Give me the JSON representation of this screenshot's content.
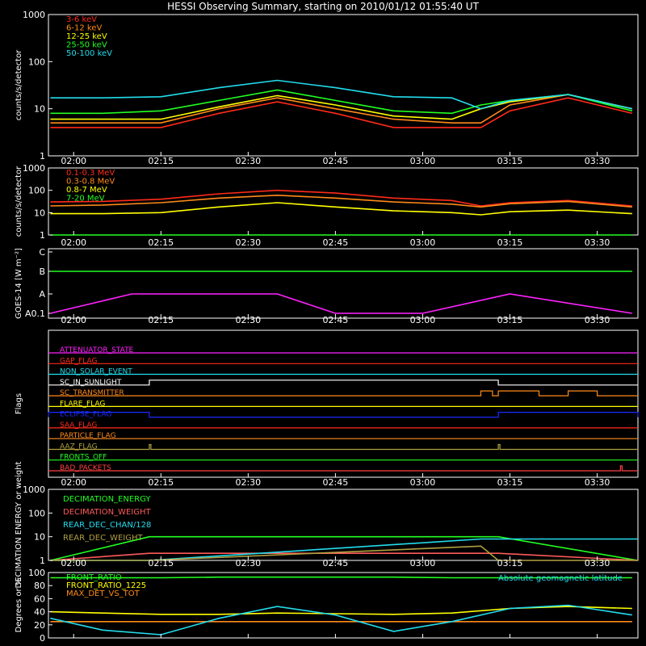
{
  "title": "HESSI Observing Summary, starting on 2010/01/12 01:55:40 UT",
  "colors": {
    "background": "#000000",
    "axes": "#ffffff",
    "red": "#ff2a1a",
    "orange": "#ff8a1a",
    "yellow": "#ffff00",
    "green": "#22ff22",
    "cyan": "#22ddee",
    "magenta": "#ff22ff",
    "blue": "#1a2aff",
    "olive": "#b0a040",
    "rose": "#ff4040",
    "pink": "#ff5a5a"
  },
  "chart_data": [
    {
      "type": "line",
      "ylabel": "counts/s/detector",
      "y_scale": "log",
      "ylim": [
        1,
        1000
      ],
      "yticks": [
        "1",
        "10",
        "100",
        "1000"
      ],
      "xlim": [
        "01:55:40",
        "03:37"
      ],
      "xticks": [
        "02:00",
        "02:15",
        "02:30",
        "02:45",
        "03:00",
        "03:15",
        "03:30"
      ],
      "legend_position": "top-left",
      "x": [
        "01:56",
        "02:05",
        "02:15",
        "02:25",
        "02:35",
        "02:45",
        "02:55",
        "03:05",
        "03:10",
        "03:15",
        "03:25",
        "03:36"
      ],
      "series": [
        {
          "name": "3-6 keV",
          "color": "red",
          "values": [
            4,
            4,
            4,
            8,
            14,
            8,
            4,
            4,
            4,
            9,
            17,
            8
          ]
        },
        {
          "name": "6-12 keV",
          "color": "orange",
          "values": [
            5,
            5,
            5,
            10,
            17,
            10,
            6,
            5,
            5,
            12,
            20,
            10
          ]
        },
        {
          "name": "12-25 keV",
          "color": "yellow",
          "values": [
            6,
            6,
            6,
            11,
            19,
            12,
            7,
            6,
            10,
            14,
            20,
            10
          ]
        },
        {
          "name": "25-50 keV",
          "color": "green",
          "values": [
            8,
            8,
            9,
            15,
            25,
            15,
            9,
            8,
            12,
            15,
            20,
            9
          ]
        },
        {
          "name": "50-100 keV",
          "color": "cyan",
          "values": [
            17,
            17,
            18,
            28,
            40,
            28,
            18,
            17,
            10,
            15,
            20,
            10
          ]
        }
      ]
    },
    {
      "type": "line",
      "ylabel": "counts/s/detector",
      "y_scale": "log",
      "ylim": [
        1,
        1000
      ],
      "yticks": [
        "1",
        "10",
        "100",
        "1000"
      ],
      "xlim": [
        "01:55:40",
        "03:37"
      ],
      "xticks": [
        "02:00",
        "02:15",
        "02:30",
        "02:45",
        "03:00",
        "03:15",
        "03:30"
      ],
      "legend_position": "top-left",
      "x": [
        "01:56",
        "02:05",
        "02:15",
        "02:25",
        "02:35",
        "02:45",
        "02:55",
        "03:05",
        "03:10",
        "03:15",
        "03:25",
        "03:36"
      ],
      "series": [
        {
          "name": "0.1-0.3 MeV",
          "color": "red",
          "values": [
            30,
            32,
            40,
            70,
            100,
            75,
            45,
            35,
            20,
            28,
            35,
            20
          ]
        },
        {
          "name": "0.3-0.8 MeV",
          "color": "orange",
          "values": [
            20,
            22,
            28,
            45,
            60,
            45,
            30,
            24,
            18,
            25,
            32,
            18
          ]
        },
        {
          "name": "0.8-7 MeV",
          "color": "yellow",
          "values": [
            9,
            9,
            10,
            18,
            28,
            18,
            12,
            10,
            8,
            11,
            13,
            9
          ]
        },
        {
          "name": "7-20 MeV",
          "color": "green",
          "values": [
            1,
            1,
            1,
            1,
            1,
            1,
            1,
            1,
            1,
            1,
            1,
            1
          ]
        }
      ]
    },
    {
      "type": "line",
      "ylabel": "GOES-14 [W m⁻²]",
      "y_scale": "log",
      "yticks": [
        "A0.1",
        "A",
        "B",
        "C"
      ],
      "xlim": [
        "01:55:40",
        "03:37"
      ],
      "xticks": [
        "02:00",
        "02:15",
        "02:30",
        "02:45",
        "03:00",
        "03:15",
        "03:30"
      ],
      "x": [
        "01:56",
        "02:10",
        "02:25",
        "02:35",
        "02:45",
        "03:00",
        "03:15",
        "03:36"
      ],
      "series": [
        {
          "name": "",
          "color": "green",
          "values": [
            "B",
            "B",
            "B",
            "B",
            "B",
            "B",
            "B",
            "B"
          ]
        },
        {
          "name": "",
          "color": "magenta",
          "values": [
            "A0.1",
            "A",
            "A",
            "A",
            "A0.1",
            "A0.1",
            "A",
            "A0.1"
          ]
        }
      ]
    },
    {
      "type": "line",
      "ylabel": "Flags",
      "xlim": [
        "01:55:40",
        "03:37"
      ],
      "xticks": [
        "02:00",
        "02:15",
        "02:30",
        "02:45",
        "03:00",
        "03:15",
        "03:30"
      ],
      "flags": [
        {
          "name": "ATTENUATOR_STATE",
          "color": "magenta",
          "on": []
        },
        {
          "name": "GAP_FLAG",
          "color": "red",
          "on": []
        },
        {
          "name": "NON_SOLAR_EVENT",
          "color": "cyan",
          "on": []
        },
        {
          "name": "SC_IN_SUNLIGHT",
          "color": "axes",
          "on": [
            [
              "02:13",
              "03:13"
            ]
          ]
        },
        {
          "name": "SC_TRANSMITTER",
          "color": "orange",
          "on": [
            [
              "03:10",
              "03:12"
            ],
            [
              "03:13",
              "03:20"
            ],
            [
              "03:25",
              "03:30"
            ]
          ]
        },
        {
          "name": "FLARE_FLAG",
          "color": "yellow",
          "on": []
        },
        {
          "name": "ECLIPSE_FLAG",
          "color": "blue",
          "on": [
            [
              "01:55:40",
              "02:13"
            ],
            [
              "03:13",
              "03:37"
            ]
          ]
        },
        {
          "name": "SAA_FLAG",
          "color": "red",
          "on": []
        },
        {
          "name": "PARTICLE_FLAG",
          "color": "orange",
          "on": []
        },
        {
          "name": "AAZ_FLAG",
          "color": "olive",
          "on": [
            [
              "02:13",
              "02:13"
            ],
            [
              "03:13",
              "03:13"
            ]
          ]
        },
        {
          "name": "FRONTS_OFF",
          "color": "green",
          "on": []
        },
        {
          "name": "BAD_PACKETS",
          "color": "rose",
          "on": [
            [
              "03:34",
              "03:34"
            ]
          ]
        }
      ]
    },
    {
      "type": "line",
      "ylabel": "DECIMATION ENERGY or weight",
      "y_scale": "log",
      "ylim": [
        1,
        1000
      ],
      "yticks": [
        "1",
        "10",
        "100",
        "1000"
      ],
      "xlim": [
        "01:55:40",
        "03:37"
      ],
      "xticks": [
        "02:00",
        "02:15",
        "02:30",
        "02:45",
        "03:00",
        "03:15",
        "03:30"
      ],
      "legend_position": "top-left",
      "x": [
        "01:56",
        "02:13",
        "03:10",
        "03:13",
        "03:37"
      ],
      "series": [
        {
          "name": "DECIMATION_ENERGY",
          "color": "green",
          "values": [
            1,
            10,
            10,
            10,
            1
          ]
        },
        {
          "name": "DECIMATION_WEIGHT",
          "color": "pink",
          "values": [
            1,
            2,
            2,
            2,
            1
          ]
        },
        {
          "name": "REAR_DEC_CHAN/128",
          "color": "cyan",
          "values": [
            1,
            1,
            8,
            8,
            8
          ]
        },
        {
          "name": "REAR_DEC_WEIGHT",
          "color": "olive",
          "values": [
            1,
            1,
            4,
            1,
            1
          ]
        }
      ]
    },
    {
      "type": "line",
      "ylabel": "Degrees or %",
      "ylim": [
        0,
        100
      ],
      "yticks": [
        "0",
        "20",
        "40",
        "60",
        "80",
        "100"
      ],
      "xlim": [
        "01:55:40",
        "03:37"
      ],
      "xticks": [
        "02:00",
        "02:15",
        "02:30",
        "02:45",
        "03:00",
        "03:15",
        "03:30"
      ],
      "legend_position": "top-left",
      "annotation": "Absolute geomagnetic latitude",
      "x": [
        "01:56",
        "02:05",
        "02:15",
        "02:25",
        "02:35",
        "02:45",
        "02:55",
        "03:05",
        "03:15",
        "03:25",
        "03:36"
      ],
      "series": [
        {
          "name": "FRONT_RATIO",
          "color": "green",
          "values": [
            92,
            92,
            92,
            93,
            93,
            93,
            93,
            92,
            92,
            92,
            92
          ]
        },
        {
          "name": "FRONT_RATIO_1225",
          "color": "yellow",
          "values": [
            40,
            38,
            36,
            36,
            38,
            37,
            36,
            38,
            45,
            48,
            45
          ]
        },
        {
          "name": "MAX_DET_VS_TOT",
          "color": "orange",
          "values": [
            25,
            25,
            25,
            25,
            25,
            25,
            25,
            25,
            25,
            25,
            25
          ]
        },
        {
          "name": "",
          "color": "cyan",
          "values": [
            30,
            12,
            5,
            30,
            48,
            35,
            10,
            25,
            45,
            50,
            35
          ]
        }
      ]
    }
  ]
}
